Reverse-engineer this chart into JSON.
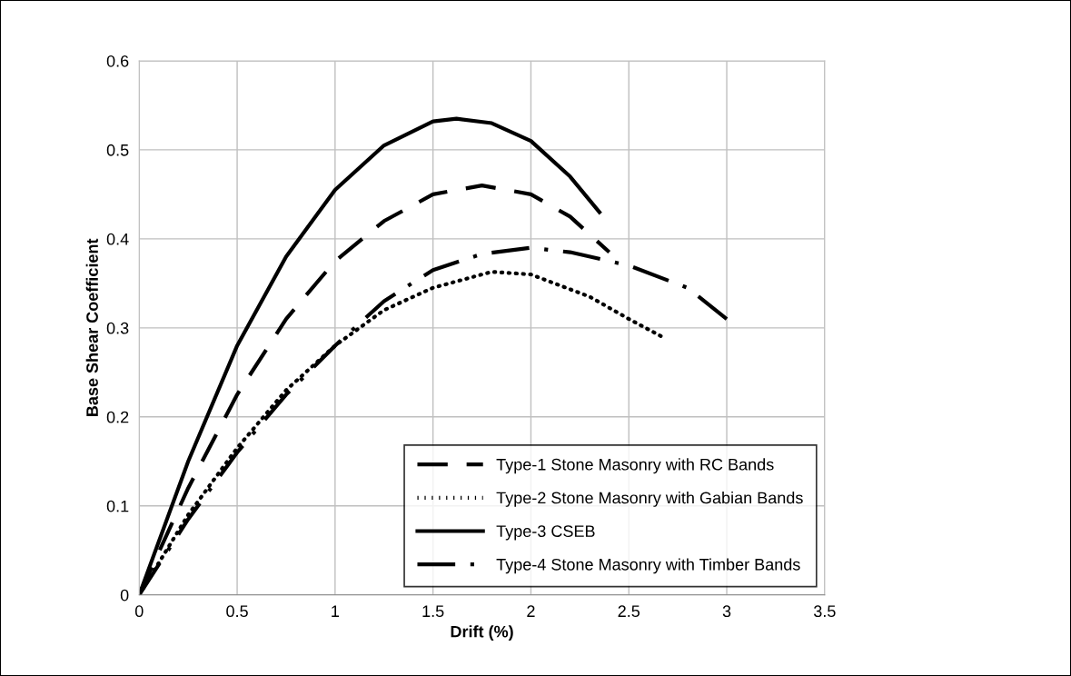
{
  "chart_data": {
    "type": "line",
    "xlabel": "Drift (%)",
    "ylabel": "Base Shear Coefficient",
    "xlim": [
      0,
      3.5
    ],
    "xticks": [
      0,
      0.5,
      1,
      1.5,
      2,
      2.5,
      3,
      3.5
    ],
    "ylim": [
      0,
      0.6
    ],
    "yticks": [
      0,
      0.1,
      0.2,
      0.3,
      0.4,
      0.5,
      0.6
    ],
    "grid": true,
    "legend": "bottom right",
    "marker": "none",
    "series": [
      {
        "name": "Type-1 Stone Masonry with RC Bands",
        "color": "#000000",
        "line_style": "dashed",
        "x": [
          0,
          0.25,
          0.5,
          0.75,
          1.0,
          1.25,
          1.5,
          1.75,
          2.0,
          2.2,
          2.4
        ],
        "values": [
          0,
          0.12,
          0.225,
          0.31,
          0.375,
          0.42,
          0.45,
          0.46,
          0.45,
          0.425,
          0.385
        ]
      },
      {
        "name": "Type-2 Stone Masonry with Gabian Bands",
        "color": "#000000",
        "line_style": "dotted",
        "x": [
          0,
          0.25,
          0.5,
          0.75,
          1.0,
          1.25,
          1.5,
          1.8,
          2.0,
          2.3,
          2.5,
          2.67
        ],
        "values": [
          0,
          0.09,
          0.165,
          0.23,
          0.28,
          0.32,
          0.345,
          0.363,
          0.36,
          0.335,
          0.31,
          0.29
        ]
      },
      {
        "name": "Type-3 CSEB",
        "color": "#000000",
        "line_style": "solid",
        "x": [
          0,
          0.25,
          0.5,
          0.75,
          1.0,
          1.25,
          1.5,
          1.62,
          1.8,
          2.0,
          2.2,
          2.35
        ],
        "values": [
          0,
          0.15,
          0.28,
          0.38,
          0.455,
          0.505,
          0.532,
          0.535,
          0.53,
          0.51,
          0.47,
          0.43
        ]
      },
      {
        "name": "Type-4 Stone Masonry with Timber Bands",
        "color": "#000000",
        "line_style": "dashdot",
        "x": [
          0,
          0.25,
          0.5,
          0.75,
          1.0,
          1.25,
          1.5,
          1.75,
          2.0,
          2.2,
          2.5,
          2.8,
          3.0
        ],
        "values": [
          0,
          0.085,
          0.16,
          0.225,
          0.28,
          0.33,
          0.365,
          0.383,
          0.39,
          0.385,
          0.37,
          0.345,
          0.31
        ]
      }
    ]
  }
}
